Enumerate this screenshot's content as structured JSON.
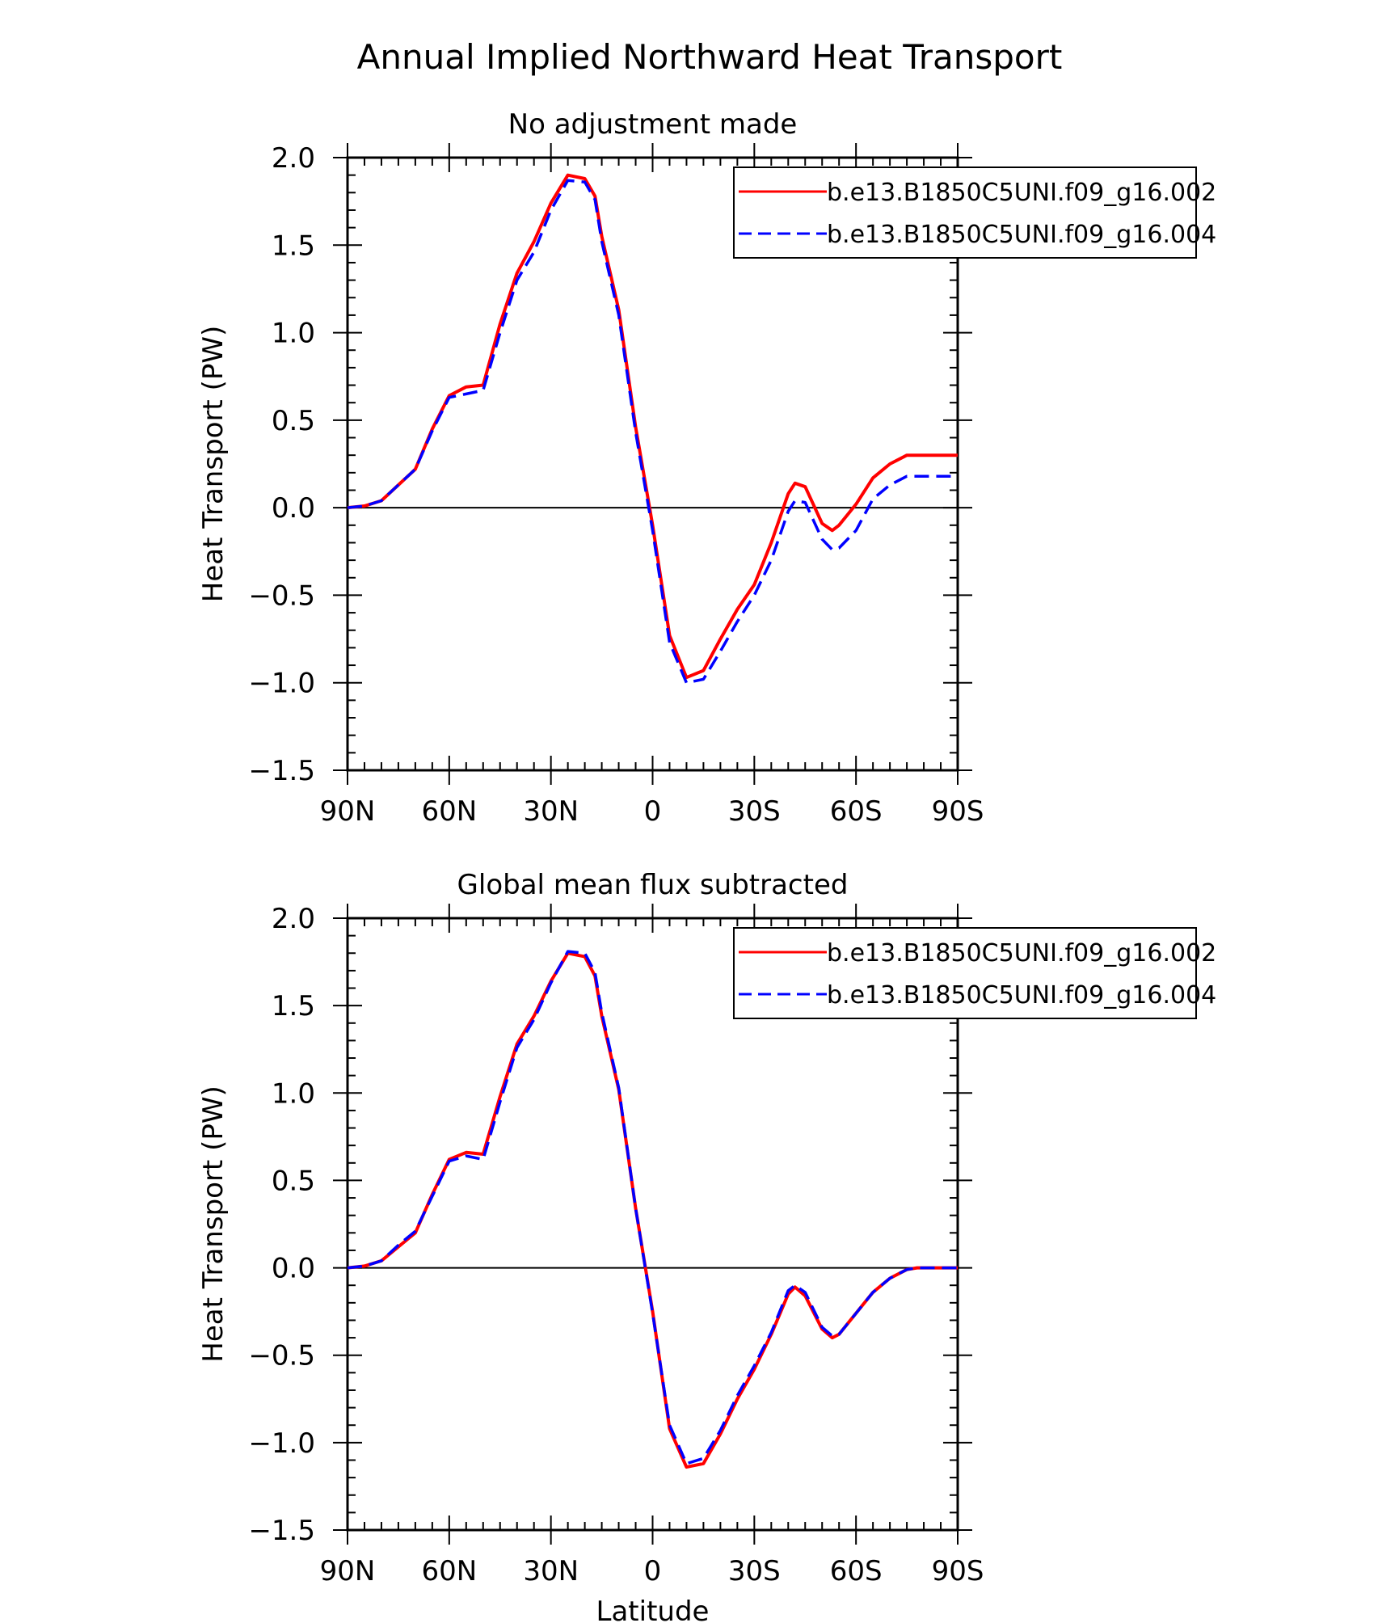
{
  "figure": {
    "title": "Annual Implied Northward Heat Transport"
  },
  "colors": {
    "series1": "#ff0000",
    "series2": "#0000ff",
    "axis": "#000000"
  },
  "chart_data": [
    {
      "type": "line",
      "title": "No adjustment made",
      "ylabel": "Heat Transport (PW)",
      "xlabel": "",
      "xlim": [
        90,
        -90
      ],
      "ylim": [
        -1.5,
        2.0
      ],
      "xticks": [
        90,
        60,
        30,
        0,
        -30,
        -60,
        -90
      ],
      "xtick_labels": [
        "90N",
        "60N",
        "30N",
        "0",
        "30S",
        "60S",
        "90S"
      ],
      "yticks": [
        -1.5,
        -1.0,
        -0.5,
        0.0,
        0.5,
        1.0,
        1.5,
        2.0
      ],
      "ytick_labels": [
        "−1.5",
        "−1.0",
        "−0.5",
        "0.0",
        "0.5",
        "1.0",
        "1.5",
        "2.0"
      ],
      "legend": "top-right",
      "zero_line": true,
      "series": [
        {
          "name": "b.e13.B1850C5UNI.f09_g16.002",
          "style": "solid",
          "x": [
            90,
            85,
            80,
            75,
            70,
            65,
            60,
            55,
            50,
            45,
            40,
            35,
            30,
            25,
            20,
            17,
            15,
            10,
            5,
            0,
            -5,
            -10,
            -15,
            -20,
            -25,
            -30,
            -35,
            -40,
            -42,
            -45,
            -50,
            -53,
            -55,
            -60,
            -65,
            -70,
            -75,
            -80,
            -85,
            -90
          ],
          "y": [
            0.0,
            0.01,
            0.04,
            0.13,
            0.22,
            0.45,
            0.64,
            0.69,
            0.7,
            1.05,
            1.34,
            1.52,
            1.74,
            1.9,
            1.88,
            1.78,
            1.55,
            1.13,
            0.46,
            -0.1,
            -0.73,
            -0.97,
            -0.93,
            -0.75,
            -0.58,
            -0.44,
            -0.2,
            0.08,
            0.14,
            0.12,
            -0.09,
            -0.13,
            -0.1,
            0.02,
            0.17,
            0.25,
            0.3,
            0.3,
            0.3,
            0.3
          ]
        },
        {
          "name": "b.e13.B1850C5UNI.f09_g16.004",
          "style": "dashed",
          "x": [
            90,
            85,
            80,
            75,
            70,
            65,
            60,
            55,
            50,
            45,
            40,
            35,
            30,
            25,
            20,
            17,
            15,
            10,
            5,
            0,
            -5,
            -10,
            -15,
            -20,
            -25,
            -30,
            -35,
            -40,
            -42,
            -45,
            -50,
            -53,
            -55,
            -60,
            -65,
            -70,
            -75,
            -80,
            -85,
            -90
          ],
          "y": [
            0.0,
            0.01,
            0.04,
            0.13,
            0.22,
            0.44,
            0.63,
            0.65,
            0.67,
            1.0,
            1.3,
            1.46,
            1.7,
            1.87,
            1.86,
            1.76,
            1.52,
            1.1,
            0.43,
            -0.13,
            -0.77,
            -1.0,
            -0.98,
            -0.82,
            -0.65,
            -0.5,
            -0.3,
            -0.02,
            0.04,
            0.03,
            -0.18,
            -0.24,
            -0.23,
            -0.13,
            0.05,
            0.13,
            0.18,
            0.18,
            0.18,
            0.18
          ]
        }
      ]
    },
    {
      "type": "line",
      "title": "Global mean flux subtracted",
      "ylabel": "Heat Transport (PW)",
      "xlabel": "Latitude",
      "xlim": [
        90,
        -90
      ],
      "ylim": [
        -1.5,
        2.0
      ],
      "xticks": [
        90,
        60,
        30,
        0,
        -30,
        -60,
        -90
      ],
      "xtick_labels": [
        "90N",
        "60N",
        "30N",
        "0",
        "30S",
        "60S",
        "90S"
      ],
      "yticks": [
        -1.5,
        -1.0,
        -0.5,
        0.0,
        0.5,
        1.0,
        1.5,
        2.0
      ],
      "ytick_labels": [
        "−1.5",
        "−1.0",
        "−0.5",
        "0.0",
        "0.5",
        "1.0",
        "1.5",
        "2.0"
      ],
      "legend": "top-right",
      "zero_line": true,
      "series": [
        {
          "name": "b.e13.B1850C5UNI.f09_g16.002",
          "style": "solid",
          "x": [
            90,
            85,
            80,
            75,
            70,
            65,
            60,
            55,
            50,
            45,
            40,
            35,
            30,
            25,
            20,
            17,
            15,
            10,
            5,
            0,
            -5,
            -10,
            -15,
            -20,
            -25,
            -30,
            -35,
            -40,
            -42,
            -45,
            -50,
            -53,
            -55,
            -60,
            -65,
            -70,
            -75,
            -78,
            -80,
            -85,
            -90
          ],
          "y": [
            0.0,
            0.01,
            0.04,
            0.12,
            0.2,
            0.42,
            0.62,
            0.66,
            0.65,
            0.98,
            1.28,
            1.44,
            1.64,
            1.8,
            1.78,
            1.67,
            1.44,
            1.02,
            0.34,
            -0.25,
            -0.92,
            -1.14,
            -1.12,
            -0.95,
            -0.75,
            -0.58,
            -0.38,
            -0.15,
            -0.11,
            -0.16,
            -0.35,
            -0.4,
            -0.38,
            -0.26,
            -0.14,
            -0.06,
            -0.01,
            0.0,
            0.0,
            0.0,
            0.0
          ]
        },
        {
          "name": "b.e13.B1850C5UNI.f09_g16.004",
          "style": "dashed",
          "x": [
            90,
            85,
            80,
            75,
            70,
            65,
            60,
            55,
            50,
            45,
            40,
            35,
            30,
            25,
            20,
            17,
            15,
            10,
            5,
            0,
            -5,
            -10,
            -15,
            -20,
            -25,
            -30,
            -35,
            -40,
            -42,
            -45,
            -50,
            -53,
            -55,
            -60,
            -65,
            -70,
            -75,
            -78,
            -80,
            -85,
            -90
          ],
          "y": [
            0.0,
            0.01,
            0.04,
            0.13,
            0.21,
            0.41,
            0.61,
            0.64,
            0.62,
            0.95,
            1.26,
            1.42,
            1.63,
            1.81,
            1.8,
            1.69,
            1.46,
            1.03,
            0.34,
            -0.26,
            -0.9,
            -1.12,
            -1.09,
            -0.93,
            -0.73,
            -0.56,
            -0.37,
            -0.13,
            -0.1,
            -0.14,
            -0.34,
            -0.39,
            -0.38,
            -0.26,
            -0.14,
            -0.06,
            -0.01,
            0.0,
            0.0,
            0.0,
            0.0
          ]
        }
      ]
    }
  ]
}
